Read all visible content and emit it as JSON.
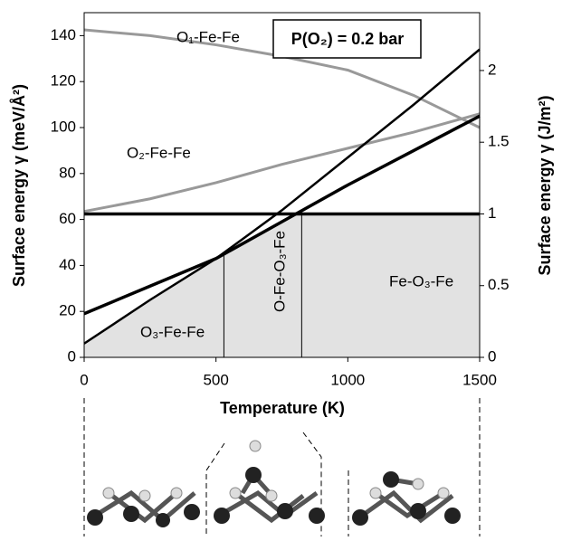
{
  "chart_data": {
    "type": "line",
    "x": [
      0,
      250,
      500,
      750,
      1000,
      1250,
      1500
    ],
    "series": [
      {
        "name": "O₁-Fe-Fe",
        "color": "#999999",
        "values": [
          142.5,
          140,
          136,
          131,
          125,
          114,
          100
        ]
      },
      {
        "name": "O₂-Fe-Fe",
        "color": "#999999",
        "values": [
          63.5,
          69,
          76,
          84,
          91,
          98,
          106
        ]
      },
      {
        "name": "O₃-Fe-Fe",
        "color": "#000000",
        "values": [
          6,
          25,
          43,
          64,
          87,
          110,
          134
        ]
      },
      {
        "name": "O-Fe-O₃-Fe",
        "color": "#000000",
        "values": [
          19,
          31,
          43,
          59,
          75,
          90,
          105
        ]
      },
      {
        "name": "Fe-O₃-Fe",
        "color": "#000000",
        "values": [
          62.4,
          62.4,
          62.4,
          62.4,
          62.4,
          62.4,
          62.4
        ]
      }
    ],
    "phase_boundaries": [
      530,
      825
    ],
    "annotation": "P(O₂) = 0.2 bar",
    "xlabel": "Temperature (K)",
    "ylabel": "Surface energy γ (meV/Å²)",
    "y2label": "Surface energy γ (J/m²)",
    "xlim": [
      0,
      1500
    ],
    "xticks": [
      0,
      500,
      1000,
      1500
    ],
    "ylim": [
      0,
      150
    ],
    "yticks": [
      0,
      20,
      40,
      60,
      80,
      100,
      120,
      140
    ],
    "y2lim": [
      0,
      2.4033
    ],
    "y2ticks": [
      0,
      0.5,
      1,
      1.5,
      2
    ],
    "grid": false
  }
}
